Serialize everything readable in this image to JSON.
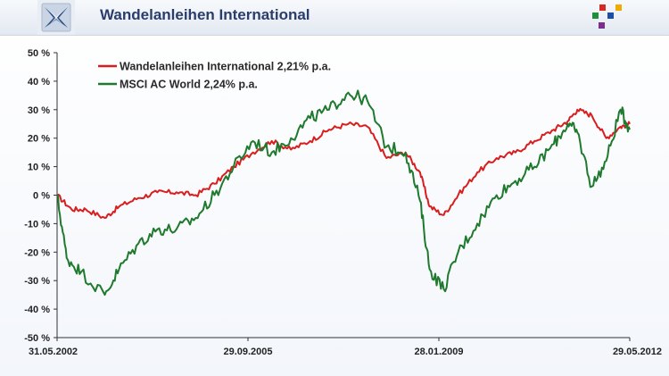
{
  "header": {
    "title": "Wandelanleihen International",
    "logo_icon": "stylized-globe-logo-icon",
    "brand_icon": "colored-squares-brand-icon"
  },
  "colors": {
    "title": "#2a3d6a",
    "series_1": "#d81e1e",
    "series_2": "#1f7a2e"
  },
  "chart_data": {
    "type": "line",
    "title": "Wandelanleihen International",
    "ylabel": "",
    "xlabel": "",
    "ylim": [
      -50,
      50
    ],
    "y_ticks": [
      -50,
      -40,
      -30,
      -20,
      -10,
      0,
      10,
      20,
      30,
      40,
      50
    ],
    "y_tick_labels": [
      "-50 %",
      "-40 %",
      "-30 %",
      "-20 %",
      "-10 %",
      "0 %",
      "10 %",
      "20 %",
      "30 %",
      "40 %",
      "50 %"
    ],
    "x_range": [
      "2002-05-31",
      "2012-05-29"
    ],
    "x_ticks": [
      "2002-05-31",
      "2005-09-29",
      "2009-01-28",
      "2012-05-29"
    ],
    "x_tick_labels": [
      "31.05.2002",
      "29.09.2005",
      "28.01.2009",
      "29.05.2012"
    ],
    "grid": false,
    "legend_position": "top-left",
    "series": [
      {
        "name": "Wandelanleihen International 2,21% p.a.",
        "color": "#d81e1e",
        "x": [
          "2002-05-31",
          "2002-08-31",
          "2002-11-30",
          "2003-03-31",
          "2003-06-30",
          "2003-10-31",
          "2004-02-29",
          "2004-06-30",
          "2004-10-31",
          "2005-02-28",
          "2005-06-30",
          "2005-10-31",
          "2006-02-28",
          "2006-06-30",
          "2006-10-31",
          "2007-02-28",
          "2007-06-30",
          "2007-10-31",
          "2008-02-29",
          "2008-06-30",
          "2008-09-30",
          "2008-11-30",
          "2009-02-28",
          "2009-05-31",
          "2009-09-30",
          "2010-01-31",
          "2010-05-31",
          "2010-09-30",
          "2011-01-31",
          "2011-04-30",
          "2011-06-30",
          "2011-09-30",
          "2011-12-31",
          "2012-03-31",
          "2012-05-29"
        ],
        "values": [
          0,
          -5,
          -5,
          -8,
          -4,
          -1,
          1,
          1,
          0,
          4,
          10,
          15,
          19,
          16,
          19,
          23,
          25,
          24,
          13,
          15,
          8,
          -4,
          -7,
          0,
          8,
          13,
          15,
          19,
          23,
          26,
          30,
          28,
          20,
          24,
          25
        ]
      },
      {
        "name": "MSCI AC World 2,24% p.a.",
        "color": "#1f7a2e",
        "x": [
          "2002-05-31",
          "2002-07-31",
          "2002-10-31",
          "2003-03-31",
          "2003-06-30",
          "2003-10-31",
          "2004-02-29",
          "2004-06-30",
          "2004-10-31",
          "2005-02-28",
          "2005-06-30",
          "2005-10-31",
          "2006-02-28",
          "2006-06-30",
          "2006-10-31",
          "2007-02-28",
          "2007-06-30",
          "2007-10-31",
          "2008-02-29",
          "2008-06-30",
          "2008-09-30",
          "2008-11-30",
          "2009-02-28",
          "2009-05-31",
          "2009-09-30",
          "2010-01-31",
          "2010-05-31",
          "2010-09-30",
          "2011-01-31",
          "2011-04-30",
          "2011-06-30",
          "2011-09-30",
          "2011-12-31",
          "2012-03-31",
          "2012-05-29"
        ],
        "values": [
          0,
          -22,
          -27,
          -35,
          -26,
          -17,
          -12,
          -12,
          -8,
          0,
          10,
          19,
          15,
          20,
          27,
          30,
          36,
          33,
          17,
          15,
          -2,
          -26,
          -33,
          -20,
          -10,
          0,
          5,
          10,
          18,
          25,
          22,
          3,
          12,
          30,
          23
        ]
      }
    ]
  }
}
